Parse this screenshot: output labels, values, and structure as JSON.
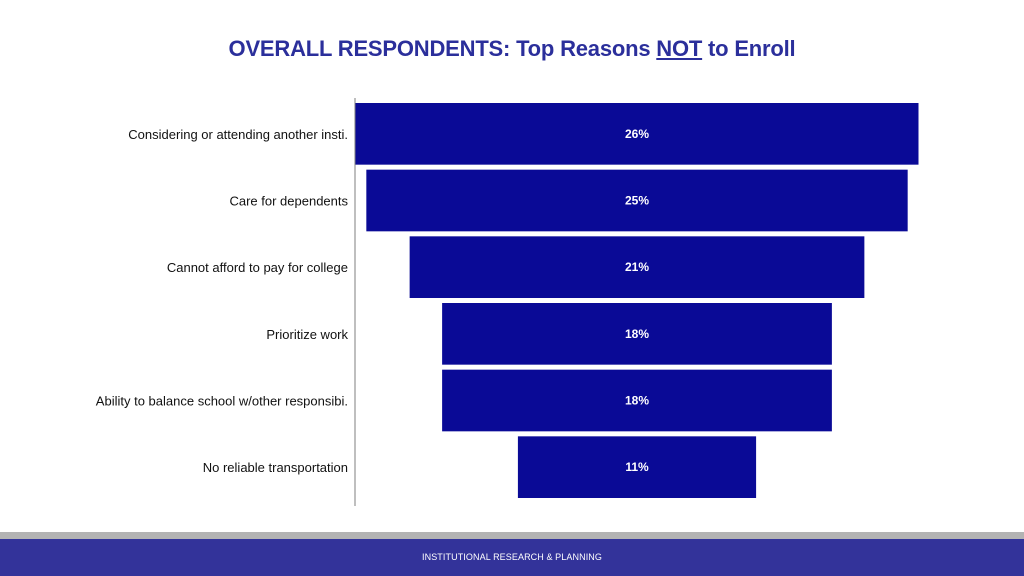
{
  "title": {
    "prefix": "OVERALL RESPONDENTS:  Top Reasons ",
    "emphasis": "NOT",
    "suffix": " to Enroll"
  },
  "footer": {
    "text": "INSTITUTIONAL RESEARCH & PLANNING"
  },
  "colors": {
    "bar": "#0a0a96",
    "axis": "#7f7f7f",
    "title": "#2b2f9b",
    "footer": "#33339a"
  },
  "chart_data": {
    "type": "bar",
    "orientation": "horizontal",
    "style": "funnel",
    "categories": [
      "Considering or attending another insti.",
      "Care for dependents",
      "Cannot afford to pay for college",
      "Prioritize work",
      "Ability to balance school w/other responsibi.",
      "No reliable transportation"
    ],
    "values": [
      26,
      25,
      21,
      18,
      18,
      11
    ],
    "value_labels": [
      "26%",
      "25%",
      "21%",
      "18%",
      "18%",
      "11%"
    ],
    "unit": "%",
    "grid": false,
    "legend": "none"
  }
}
